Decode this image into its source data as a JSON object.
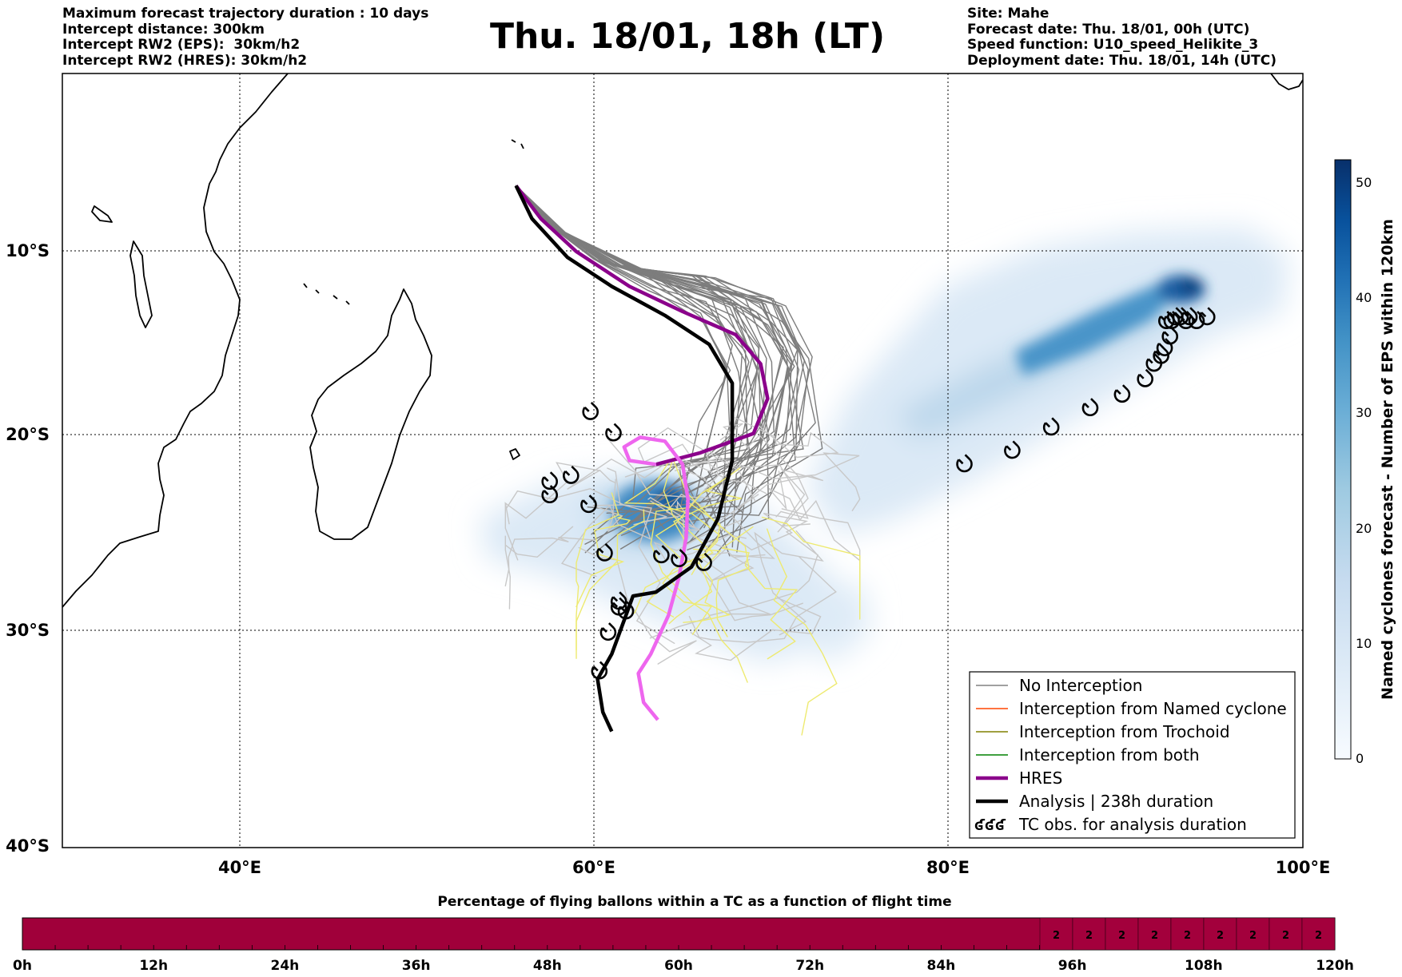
{
  "header": {
    "left": [
      "Maximum forecast trajectory duration : 10 days",
      "Intercept distance: 300km",
      "Intercept RW2 (EPS):  30km/h2",
      "Intercept RW2 (HRES): 30km/h2"
    ],
    "title": "Thu. 18/01, 18h (LT)",
    "right": [
      "Site: Mahe",
      "Forecast date: Thu. 18/01, 00h (UTC)",
      "Speed function: U10_speed_Helikite_3",
      "Deployment date: Thu. 18/01, 14h (UTC)"
    ]
  },
  "map": {
    "lon_ticks": [
      "40°E",
      "60°E",
      "80°E",
      "100°E"
    ],
    "lat_ticks": [
      "10°S",
      "20°S",
      "30°S",
      "40°S"
    ],
    "extent": {
      "lon": [
        30,
        100
      ],
      "lat": [
        -40,
        0
      ]
    }
  },
  "legend": {
    "items": [
      {
        "label": "No Interception",
        "color": "#808080",
        "style": "thin"
      },
      {
        "label": "Interception from Named cyclone",
        "color": "#ff4500",
        "style": "thin"
      },
      {
        "label": "Interception from Trochoid",
        "color": "#808000",
        "style": "thin"
      },
      {
        "label": "Interception from both",
        "color": "#008000",
        "style": "thin"
      },
      {
        "label": "HRES",
        "color": "#8b008b",
        "style": "thick"
      },
      {
        "label": "Analysis | 238h duration",
        "color": "#000000",
        "style": "thick"
      },
      {
        "label": "TC obs. for analysis duration",
        "color": "#000000",
        "style": "symbol"
      }
    ]
  },
  "colorbar": {
    "label": "Named cyclones forecast - Number of EPS within 120km",
    "ticks": [
      "0",
      "10",
      "20",
      "30",
      "40",
      "50"
    ],
    "min": 0,
    "max": 52,
    "colors": [
      "#f7fbff",
      "#deebf7",
      "#c6dbef",
      "#9ecae1",
      "#6baed6",
      "#4292c6",
      "#2171b5",
      "#08519c",
      "#08306b"
    ]
  },
  "bottom_bar": {
    "title": "Percentage of flying ballons within a TC as a function of flight time",
    "ticks": [
      "0h",
      "12h",
      "24h",
      "36h",
      "48h",
      "60h",
      "72h",
      "84h",
      "96h",
      "108h",
      "120h"
    ],
    "fill_color": "#a0003a",
    "cell_values": [
      "2",
      "2",
      "2",
      "2",
      "2",
      "2",
      "2",
      "2",
      "2"
    ]
  },
  "tracks": {
    "analysis": [
      [
        55.6,
        -5.8
      ],
      [
        56.5,
        -7.5
      ],
      [
        58.5,
        -9.5
      ],
      [
        61,
        -11
      ],
      [
        64,
        -12.5
      ],
      [
        66.5,
        -14
      ],
      [
        67.8,
        -16
      ],
      [
        67.8,
        -20
      ],
      [
        67,
        -23
      ],
      [
        65.5,
        -25.5
      ],
      [
        63.5,
        -26.8
      ],
      [
        62.2,
        -27
      ],
      [
        61.8,
        -28
      ],
      [
        61,
        -30
      ],
      [
        60.2,
        -31.3
      ],
      [
        60.5,
        -33
      ],
      [
        61,
        -34
      ]
    ],
    "hres": [
      [
        55.6,
        -5.8
      ],
      [
        57,
        -7.5
      ],
      [
        59,
        -9.2
      ],
      [
        62,
        -11
      ],
      [
        65,
        -12.3
      ],
      [
        68,
        -13.5
      ],
      [
        69.4,
        -15
      ],
      [
        69.8,
        -16.8
      ],
      [
        69,
        -18.6
      ],
      [
        66,
        -19.6
      ],
      [
        63.5,
        -20.2
      ],
      [
        62,
        -20
      ],
      [
        61.7,
        -19.3
      ],
      [
        62.6,
        -18.8
      ],
      [
        64,
        -19
      ],
      [
        65,
        -20.2
      ],
      [
        65.3,
        -22
      ],
      [
        65.2,
        -24
      ],
      [
        64.8,
        -26
      ],
      [
        64.2,
        -28
      ],
      [
        63.2,
        -30
      ],
      [
        62.5,
        -31
      ],
      [
        62.8,
        -32.5
      ],
      [
        63.6,
        -33.4
      ]
    ],
    "tc_obs_analysis": [
      [
        60.3,
        -30.9
      ],
      [
        60.8,
        -28.9
      ],
      [
        61.4,
        -27.6
      ],
      [
        61.8,
        -27.8
      ],
      [
        61.4,
        -27.3
      ],
      [
        60.6,
        -24.8
      ],
      [
        63.8,
        -24.9
      ],
      [
        64.8,
        -25.1
      ],
      [
        66.2,
        -25.3
      ],
      [
        59.7,
        -22.3
      ],
      [
        57.5,
        -21.8
      ],
      [
        57.5,
        -21.1
      ],
      [
        58.7,
        -20.8
      ],
      [
        59.8,
        -17.5
      ],
      [
        61.1,
        -18.6
      ],
      [
        80.9,
        -20.2
      ],
      [
        83.6,
        -19.5
      ],
      [
        85.8,
        -18.3
      ],
      [
        88,
        -17.3
      ],
      [
        89.8,
        -16.6
      ],
      [
        91.1,
        -15.8
      ],
      [
        91.6,
        -15
      ],
      [
        92,
        -14.6
      ],
      [
        92.2,
        -14.2
      ],
      [
        92.5,
        -13.6
      ],
      [
        92.6,
        -12.8
      ],
      [
        93.1,
        -12.6
      ],
      [
        93.6,
        -12.6
      ],
      [
        94,
        -12.8
      ],
      [
        94.6,
        -12.6
      ],
      [
        92.3,
        -12.8
      ],
      [
        92.8,
        -12.6
      ],
      [
        93.4,
        -12.8
      ]
    ]
  }
}
